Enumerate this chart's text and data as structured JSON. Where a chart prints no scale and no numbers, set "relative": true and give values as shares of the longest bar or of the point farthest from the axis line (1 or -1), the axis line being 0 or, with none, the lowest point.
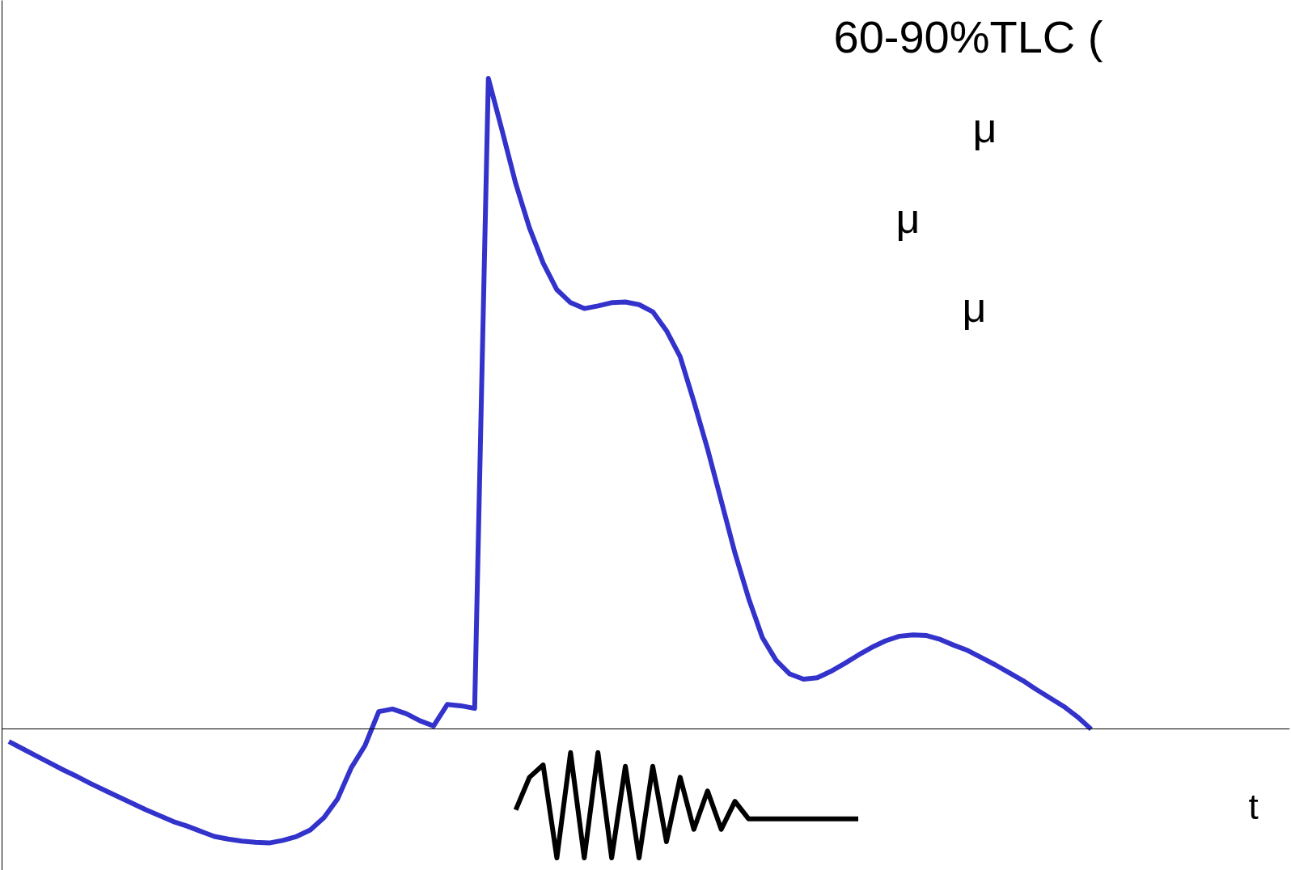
{
  "chart_data": {
    "type": "line",
    "relative": true,
    "xlabel": "t",
    "line_style": "solid",
    "annotations": [
      "60-90%TLC (",
      "μ",
      "μ",
      "μ"
    ],
    "categories": [
      null,
      null,
      null,
      null,
      null,
      null,
      null,
      null,
      null,
      null,
      null,
      null,
      null,
      null,
      null,
      null,
      null,
      null,
      null,
      null,
      null,
      null,
      null,
      null,
      null,
      null,
      null,
      null,
      null,
      null,
      null,
      null,
      null,
      null,
      null,
      null,
      null,
      null,
      null,
      null,
      null,
      null,
      null,
      null,
      null,
      null,
      null,
      null,
      null,
      null,
      null,
      null,
      null,
      null,
      null,
      null,
      null,
      null,
      null,
      null,
      null,
      null,
      null,
      null,
      null,
      null,
      null,
      null,
      null,
      null,
      null,
      null,
      null,
      null,
      null,
      null,
      null,
      null,
      null,
      null,
      null,
      null,
      null,
      null,
      null,
      null,
      null,
      null,
      null,
      null,
      null,
      null,
      null,
      null
    ],
    "series": [
      {
        "color": "#3333cc",
        "values": [
          -0.02,
          -0.031,
          -0.042,
          -0.053,
          -0.064,
          -0.074,
          -0.085,
          -0.095,
          -0.105,
          -0.115,
          -0.125,
          -0.134,
          -0.143,
          -0.15,
          -0.158,
          -0.166,
          -0.17,
          -0.173,
          -0.175,
          -0.176,
          -0.172,
          -0.166,
          -0.156,
          -0.137,
          -0.108,
          -0.06,
          -0.026,
          0.026,
          0.03,
          0.023,
          0.012,
          0.004,
          0.037,
          0.035,
          0.031,
          1.0,
          0.92,
          0.838,
          0.77,
          0.716,
          0.675,
          0.655,
          0.646,
          0.65,
          0.655,
          0.656,
          0.652,
          0.641,
          0.612,
          0.572,
          0.503,
          0.43,
          0.35,
          0.27,
          0.2,
          0.14,
          0.105,
          0.084,
          0.076,
          0.078,
          0.088,
          0.1,
          0.113,
          0.125,
          0.135,
          0.142,
          0.144,
          0.143,
          0.137,
          0.128,
          0.12,
          0.109,
          0.098,
          0.086,
          0.074,
          0.06,
          0.047,
          0.034,
          0.018,
          -0.001,
          null,
          null,
          null,
          null,
          null,
          null,
          null,
          null,
          null,
          null,
          null,
          null,
          null,
          null
        ]
      },
      {
        "color": "#000000",
        "values": [
          null,
          null,
          null,
          null,
          null,
          null,
          null,
          null,
          null,
          null,
          null,
          null,
          null,
          null,
          null,
          null,
          null,
          null,
          null,
          null,
          null,
          null,
          null,
          null,
          null,
          null,
          null,
          null,
          null,
          null,
          null,
          null,
          null,
          null,
          null,
          null,
          null,
          -0.125,
          -0.075,
          -0.056,
          -0.199,
          -0.037,
          -0.199,
          -0.037,
          -0.199,
          -0.058,
          -0.199,
          -0.058,
          -0.174,
          -0.075,
          -0.155,
          -0.096,
          -0.155,
          -0.112,
          -0.139,
          -0.139,
          -0.139,
          -0.139,
          -0.139,
          -0.139,
          -0.139,
          -0.139,
          -0.139,
          null,
          null,
          null,
          null,
          null,
          null,
          null,
          null,
          null,
          null,
          null,
          null,
          null,
          null,
          null,
          null,
          null,
          null,
          null,
          null,
          null,
          null,
          null,
          null,
          null,
          null,
          null,
          null,
          null,
          null,
          null
        ]
      }
    ]
  }
}
